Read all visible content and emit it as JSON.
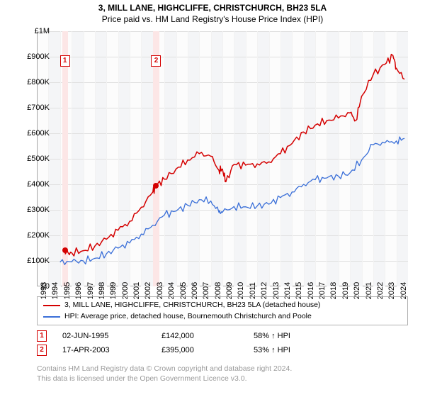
{
  "header": {
    "title": "3, MILL LANE, HIGHCLIFFE, CHRISTCHURCH, BH23 5LA",
    "subtitle": "Price paid vs. HM Land Registry's House Price Index (HPI)"
  },
  "chart": {
    "type": "line",
    "background_color": "#fcfcfc",
    "border_color": "#a6a6a6",
    "grid_color": "#e0e0e0",
    "minor_grid_color": "#f2f2f2",
    "sale_band_color": "#fce6e6",
    "y": {
      "min": 0,
      "max": 1000000,
      "tick_step": 100000,
      "labels": [
        "£0",
        "£100K",
        "£200K",
        "£300K",
        "£400K",
        "£500K",
        "£600K",
        "£700K",
        "£800K",
        "£900K",
        "£1M"
      ],
      "label_fontsize": 11
    },
    "x": {
      "min": 1993,
      "max": 2025,
      "tick_step": 1,
      "labels": [
        "1993",
        "1994",
        "1995",
        "1996",
        "1997",
        "1998",
        "1999",
        "2000",
        "2001",
        "2002",
        "2003",
        "2004",
        "2005",
        "2006",
        "2007",
        "2008",
        "2009",
        "2010",
        "2011",
        "2012",
        "2013",
        "2014",
        "2015",
        "2016",
        "2017",
        "2018",
        "2019",
        "2020",
        "2021",
        "2022",
        "2023",
        "2024"
      ],
      "label_fontsize": 11
    },
    "series": [
      {
        "name": "price_paid",
        "color": "#d40000",
        "line_width": 1.5,
        "xs": [
          1995.42,
          1995.5,
          1996,
          1997,
          1998,
          1999,
          2000,
          2001,
          2002,
          2003,
          2003.29,
          2004,
          2005,
          2006,
          2007,
          2008,
          2008.7,
          2009,
          2009.3,
          2010,
          2011,
          2012,
          2013,
          2014,
          2015,
          2016,
          2017,
          2018,
          2019,
          2020,
          2020.5,
          2021,
          2022,
          2023,
          2023.7,
          2024,
          2024.7
        ],
        "ys": [
          142000,
          130000,
          132000,
          140000,
          158000,
          185000,
          220000,
          255000,
          310000,
          370000,
          395000,
          420000,
          460000,
          495000,
          520000,
          510000,
          455000,
          460000,
          410000,
          478000,
          475000,
          480000,
          488000,
          520000,
          560000,
          605000,
          632000,
          650000,
          660000,
          680000,
          650000,
          745000,
          830000,
          870000,
          905000,
          855000,
          812000
        ]
      },
      {
        "name": "hpi",
        "color": "#3a6fd8",
        "line_width": 1.3,
        "xs": [
          1995,
          1996,
          1997,
          1998,
          1999,
          2000,
          2001,
          2002,
          2003,
          2004,
          2005,
          2006,
          2007,
          2008,
          2008.7,
          2009,
          2010,
          2011,
          2012,
          2013,
          2014,
          2015,
          2016,
          2017,
          2018,
          2019,
          2020,
          2021,
          2022,
          2023,
          2024,
          2024.7
        ],
        "ys": [
          95000,
          96000,
          100000,
          110000,
          128000,
          150000,
          170000,
          205000,
          240000,
          280000,
          295000,
          318000,
          340000,
          335000,
          290000,
          290000,
          313000,
          312000,
          315000,
          322000,
          348000,
          370000,
          400000,
          418000,
          425000,
          432000,
          445000,
          495000,
          555000,
          562000,
          570000,
          580000
        ]
      }
    ],
    "sale_points": [
      {
        "n": "1",
        "year": 1995.42,
        "price": 142000,
        "marker_y": 905000
      },
      {
        "n": "2",
        "year": 2003.29,
        "price": 395000,
        "marker_y": 905000
      }
    ],
    "sale_dot_color": "#d40000"
  },
  "legend": {
    "items": [
      {
        "color": "#d40000",
        "label": "3, MILL LANE, HIGHCLIFFE, CHRISTCHURCH, BH23 5LA (detached house)"
      },
      {
        "color": "#3a6fd8",
        "label": "HPI: Average price, detached house, Bournemouth Christchurch and Poole"
      }
    ]
  },
  "sales": [
    {
      "n": "1",
      "color": "#d40000",
      "date": "02-JUN-1995",
      "price": "£142,000",
      "hpi": "58% ↑ HPI"
    },
    {
      "n": "2",
      "color": "#d40000",
      "date": "17-APR-2003",
      "price": "£395,000",
      "hpi": "53% ↑ HPI"
    }
  ],
  "footer": {
    "line1": "Contains HM Land Registry data © Crown copyright and database right 2024.",
    "line2": "This data is licensed under the Open Government Licence v3.0."
  }
}
